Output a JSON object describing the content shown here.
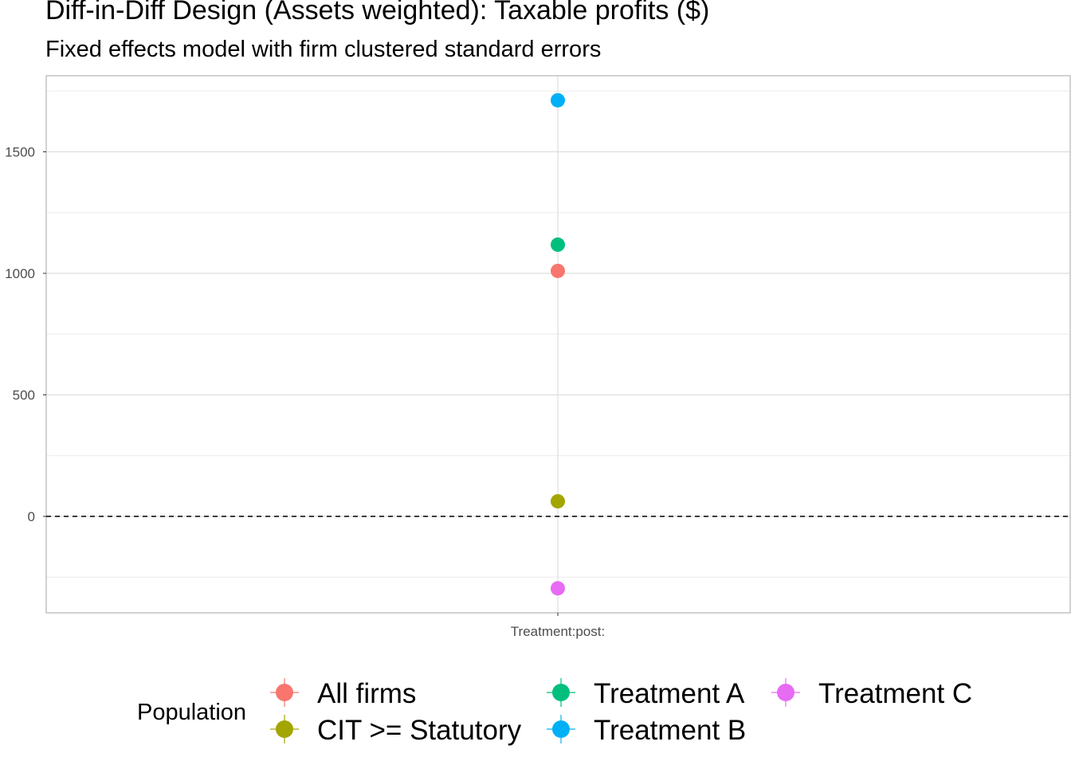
{
  "title": "Diff-in-Diff Design (Assets weighted): Taxable profits  ($)",
  "subtitle": "Fixed effects model with firm clustered standard errors",
  "chart_data": {
    "type": "scatter",
    "title": "Diff-in-Diff Design (Assets weighted): Taxable profits  ($)",
    "subtitle": "Fixed effects model with firm clustered standard errors",
    "xlabel": "",
    "ylabel": "",
    "categories": [
      "Treatment:post:"
    ],
    "ylim": [
      -400,
      1760
    ],
    "yticks": [
      0,
      500,
      1000,
      1500
    ],
    "reference_line": {
      "y": 0,
      "style": "dashed"
    },
    "grid": true,
    "legend": {
      "title": "Population",
      "position": "bottom"
    },
    "series": [
      {
        "name": "All firms",
        "color": "#F8766D",
        "values": [
          1010
        ]
      },
      {
        "name": "CIT >= Statutory",
        "color": "#A3A500",
        "values": [
          62
        ]
      },
      {
        "name": "Treatment A",
        "color": "#00BF7D",
        "values": [
          1118
        ]
      },
      {
        "name": "Treatment B",
        "color": "#00B0F6",
        "values": [
          1712
        ]
      },
      {
        "name": "Treatment C",
        "color": "#E76BF3",
        "values": [
          -296
        ]
      }
    ]
  }
}
